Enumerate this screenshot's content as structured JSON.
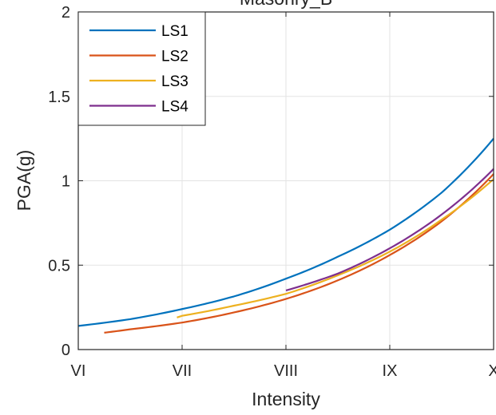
{
  "chart_data": {
    "type": "line",
    "title": "Masonry_B",
    "xlabel": "Intensity",
    "ylabel": "PGA(g)",
    "x_categories": [
      "VI",
      "VII",
      "VIII",
      "IX",
      "X"
    ],
    "ylim": [
      0,
      2
    ],
    "y_ticks": [
      "0",
      "0.5",
      "1",
      "1.5",
      "2"
    ],
    "grid": true,
    "legend_position": "top-left",
    "series": [
      {
        "name": "LS1",
        "color": "#0072BD",
        "x": [
          1.0,
          1.5,
          2.0,
          2.5,
          3.0,
          3.5,
          4.0,
          4.5,
          5.0
        ],
        "y": [
          0.14,
          0.18,
          0.24,
          0.315,
          0.42,
          0.55,
          0.71,
          0.93,
          1.25
        ]
      },
      {
        "name": "LS2",
        "color": "#D95319",
        "x": [
          1.25,
          1.5,
          2.0,
          2.5,
          3.0,
          3.5,
          4.0,
          4.5,
          5.0
        ],
        "y": [
          0.1,
          0.12,
          0.16,
          0.22,
          0.3,
          0.41,
          0.56,
          0.76,
          1.04
        ]
      },
      {
        "name": "LS3",
        "color": "#EDB120",
        "x": [
          1.95,
          2.0,
          2.5,
          3.0,
          3.5,
          4.0,
          4.5,
          5.0
        ],
        "y": [
          0.19,
          0.2,
          0.26,
          0.33,
          0.44,
          0.58,
          0.77,
          1.01
        ]
      },
      {
        "name": "LS4",
        "color": "#7E2F8E",
        "x": [
          3.0,
          3.5,
          4.0,
          4.5,
          5.0
        ],
        "y": [
          0.35,
          0.45,
          0.6,
          0.8,
          1.07
        ]
      }
    ]
  }
}
